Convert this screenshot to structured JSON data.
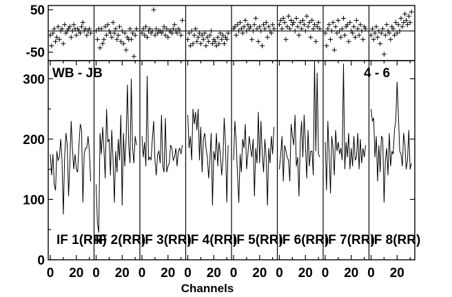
{
  "chart_data": {
    "type": "line",
    "title": "",
    "baseline_label": "WB - JB",
    "scan_label": "4 - 6",
    "xlabel": "Channels",
    "x_ticks": [
      "0",
      "20"
    ],
    "x_range": [
      0,
      32
    ],
    "amplitude": {
      "ylim": [
        0,
        330
      ],
      "ticks": [
        "0",
        "100",
        "200",
        "300"
      ]
    },
    "phase": {
      "ylim": [
        -70,
        60
      ],
      "ticks": [
        "-50",
        "50"
      ],
      "reference_line": 0
    },
    "panels": [
      {
        "name": "IF 1(RR)",
        "amplitude": [
          175,
          140,
          175,
          125,
          115,
          180,
          165,
          170,
          200,
          165,
          75,
          170,
          210,
          190,
          105,
          160,
          230,
          185,
          150,
          175,
          150,
          145,
          190,
          225,
          215,
          95,
          175,
          185,
          185,
          205,
          180,
          130
        ],
        "phase": [
          -10,
          -35,
          -5,
          5,
          -25,
          -15,
          10,
          -20,
          0,
          5,
          -30,
          15,
          -5,
          0,
          5,
          10,
          -15,
          0,
          15,
          5,
          -10,
          5,
          0,
          -5,
          10,
          20,
          0,
          5,
          -10,
          0,
          5,
          -5
        ]
      },
      {
        "name": "IF 2(RR)",
        "amplitude": [
          125,
          60,
          45,
          210,
          175,
          220,
          185,
          135,
          250,
          195,
          200,
          140,
          215,
          165,
          95,
          180,
          145,
          200,
          165,
          240,
          90,
          210,
          155,
          200,
          290,
          190,
          160,
          300,
          185,
          160,
          205,
          190
        ],
        "phase": [
          0,
          -20,
          5,
          -40,
          5,
          -30,
          -20,
          10,
          -10,
          15,
          0,
          -5,
          -15,
          20,
          -5,
          5,
          -20,
          -10,
          10,
          -25,
          0,
          -30,
          -5,
          -45,
          -15,
          -20,
          5,
          -20,
          -5,
          -60,
          -10,
          5
        ]
      },
      {
        "name": "IF 3(RR)",
        "amplitude": [
          205,
          170,
          195,
          155,
          305,
          165,
          170,
          165,
          200,
          230,
          165,
          140,
          175,
          180,
          160,
          240,
          155,
          145,
          235,
          145,
          155,
          160,
          190,
          185,
          165,
          170,
          185,
          155,
          180,
          185,
          175,
          190
        ],
        "phase": [
          -5,
          5,
          -10,
          10,
          -15,
          0,
          5,
          -5,
          0,
          50,
          -10,
          5,
          -5,
          0,
          0,
          -5,
          0,
          10,
          -10,
          5,
          -15,
          0,
          0,
          -5,
          5,
          15,
          0,
          -5,
          5,
          0,
          -10,
          25
        ]
      },
      {
        "name": "IF 4(RR)",
        "amplitude": [
          240,
          185,
          205,
          165,
          250,
          225,
          245,
          215,
          250,
          165,
          220,
          145,
          200,
          210,
          185,
          170,
          135,
          165,
          210,
          90,
          180,
          165,
          210,
          155,
          195,
          175,
          140,
          165,
          235,
          190,
          95,
          190
        ],
        "phase": [
          -20,
          -5,
          -35,
          0,
          -30,
          -10,
          5,
          -25,
          -15,
          -5,
          -30,
          -10,
          -20,
          -5,
          -35,
          -15,
          -25,
          -10,
          0,
          -30,
          -20,
          -25,
          -35,
          -15,
          -30,
          -5,
          -20,
          -10,
          -30,
          -15,
          -20,
          -5
        ]
      },
      {
        "name": "IF 5(RR)",
        "amplitude": [
          165,
          230,
          195,
          140,
          95,
          175,
          145,
          200,
          185,
          225,
          150,
          175,
          205,
          185,
          170,
          200,
          105,
          185,
          160,
          245,
          160,
          230,
          175,
          145,
          200,
          170,
          90,
          185,
          160,
          205,
          175,
          220
        ],
        "phase": [
          5,
          10,
          -10,
          15,
          0,
          20,
          5,
          -5,
          10,
          25,
          0,
          15,
          5,
          10,
          -20,
          0,
          15,
          30,
          5,
          -25,
          10,
          0,
          -35,
          15,
          5,
          20,
          -15,
          10,
          0,
          -5,
          15,
          5
        ]
      },
      {
        "name": "IF 6(RR)",
        "amplitude": [
          150,
          175,
          205,
          130,
          190,
          180,
          170,
          165,
          130,
          225,
          205,
          190,
          240,
          155,
          170,
          105,
          195,
          230,
          170,
          240,
          190,
          135,
          215,
          155,
          180,
          180,
          140,
          330,
          180,
          310,
          175,
          170
        ],
        "phase": [
          15,
          25,
          5,
          30,
          20,
          -20,
          10,
          35,
          5,
          25,
          15,
          20,
          0,
          30,
          10,
          -10,
          20,
          5,
          25,
          15,
          0,
          35,
          10,
          20,
          -15,
          25,
          5,
          15,
          -25,
          10,
          20,
          5
        ]
      },
      {
        "name": "IF 7(RR)",
        "amplitude": [
          195,
          115,
          230,
          175,
          110,
          205,
          185,
          140,
          215,
          180,
          195,
          175,
          185,
          165,
          325,
          150,
          195,
          170,
          210,
          150,
          185,
          155,
          205,
          165,
          170,
          210,
          150,
          200,
          160,
          185,
          170,
          190
        ],
        "phase": [
          -5,
          -35,
          5,
          15,
          -20,
          0,
          20,
          -45,
          10,
          -5,
          25,
          0,
          -15,
          5,
          30,
          -10,
          10,
          15,
          -25,
          20,
          0,
          -5,
          10,
          -15,
          25,
          5,
          -10,
          15,
          0,
          -20,
          10,
          5
        ]
      },
      {
        "name": "IF 8(RR)",
        "amplitude": [
          250,
          230,
          235,
          170,
          205,
          130,
          190,
          145,
          205,
          200,
          95,
          165,
          185,
          140,
          210,
          155,
          180,
          175,
          215,
          230,
          295,
          240,
          180,
          175,
          155,
          210,
          190,
          150,
          165,
          215,
          150,
          160
        ],
        "phase": [
          -10,
          5,
          -20,
          -5,
          10,
          -15,
          0,
          -30,
          -5,
          5,
          -55,
          -10,
          15,
          0,
          -5,
          -20,
          10,
          5,
          -10,
          20,
          -5,
          15,
          0,
          30,
          10,
          20,
          40,
          25,
          15,
          35,
          20,
          45
        ]
      }
    ]
  }
}
